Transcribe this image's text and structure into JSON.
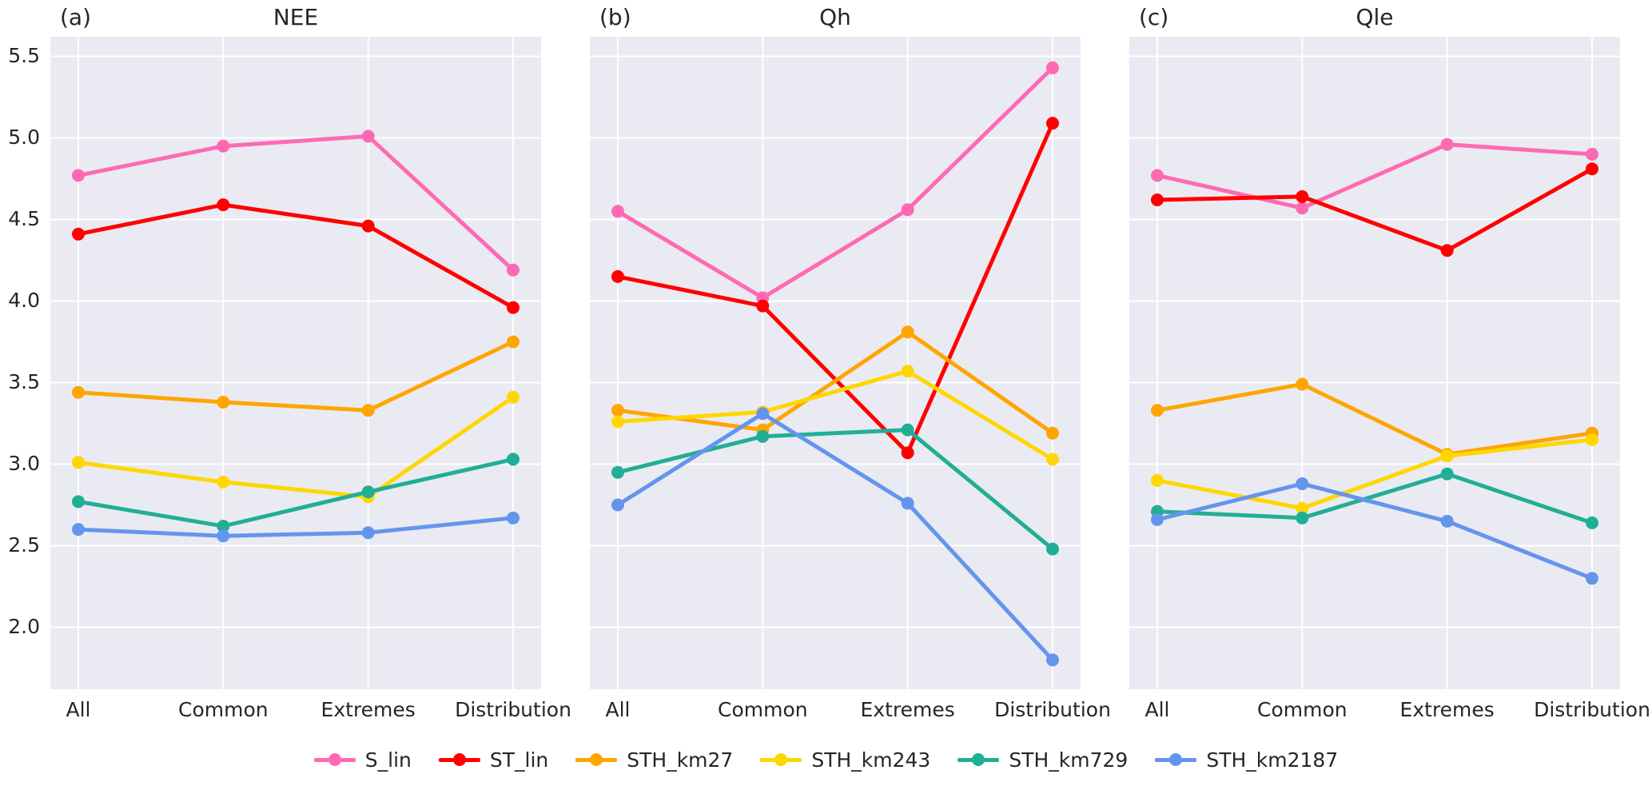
{
  "figure": {
    "background": "#ffffff",
    "plot_background": "#eaeaf2",
    "grid_color": "#ffffff",
    "text_color": "#262626"
  },
  "panels": [
    {
      "letter": "(a)",
      "title": "NEE"
    },
    {
      "letter": "(b)",
      "title": "Qh"
    },
    {
      "letter": "(c)",
      "title": "Qle"
    }
  ],
  "axes": {
    "y_tick_labels": [
      "5.5",
      "5.0",
      "4.5",
      "4.0",
      "3.5",
      "3.0",
      "2.5",
      "2.0"
    ],
    "x_tick_labels": [
      "All",
      "Common",
      "Extremes",
      "Distribution"
    ]
  },
  "legend": {
    "items": [
      {
        "label": "S_lin",
        "color": "#ff69b4"
      },
      {
        "label": "ST_lin",
        "color": "#ff0000"
      },
      {
        "label": "STH_km27",
        "color": "#ffa500"
      },
      {
        "label": "STH_km243",
        "color": "#ffd700"
      },
      {
        "label": "STH_km729",
        "color": "#21ae96"
      },
      {
        "label": "STH_km2187",
        "color": "#6495ed"
      }
    ]
  },
  "chart_data": [
    {
      "type": "line",
      "title": "NEE",
      "panel_label": "(a)",
      "categories": [
        "All",
        "Common",
        "Extremes",
        "Distribution"
      ],
      "ylim": [
        1.62,
        5.62
      ],
      "yticks": [
        5.5,
        5.0,
        4.5,
        4.0,
        3.5,
        3.0,
        2.5,
        2.0
      ],
      "grid": true,
      "legend_position": "below-figure",
      "series": [
        {
          "name": "S_lin",
          "color": "#ff69b4",
          "values": [
            4.77,
            4.95,
            5.01,
            4.19
          ]
        },
        {
          "name": "ST_lin",
          "color": "#ff0000",
          "values": [
            4.41,
            4.59,
            4.46,
            3.96
          ]
        },
        {
          "name": "STH_km27",
          "color": "#ffa500",
          "values": [
            3.44,
            3.38,
            3.33,
            3.75
          ]
        },
        {
          "name": "STH_km243",
          "color": "#ffd700",
          "values": [
            3.01,
            2.89,
            2.8,
            3.41
          ]
        },
        {
          "name": "STH_km729",
          "color": "#21ae96",
          "values": [
            2.77,
            2.62,
            2.83,
            3.03
          ]
        },
        {
          "name": "STH_km2187",
          "color": "#6495ed",
          "values": [
            2.6,
            2.56,
            2.58,
            2.67
          ]
        }
      ]
    },
    {
      "type": "line",
      "title": "Qh",
      "panel_label": "(b)",
      "categories": [
        "All",
        "Common",
        "Extremes",
        "Distribution"
      ],
      "ylim": [
        1.62,
        5.62
      ],
      "yticks": [
        5.5,
        5.0,
        4.5,
        4.0,
        3.5,
        3.0,
        2.5,
        2.0
      ],
      "grid": true,
      "legend_position": "below-figure",
      "series": [
        {
          "name": "S_lin",
          "color": "#ff69b4",
          "values": [
            4.55,
            4.02,
            4.56,
            5.43
          ]
        },
        {
          "name": "ST_lin",
          "color": "#ff0000",
          "values": [
            4.15,
            3.97,
            3.07,
            5.09
          ]
        },
        {
          "name": "STH_km27",
          "color": "#ffa500",
          "values": [
            3.33,
            3.21,
            3.81,
            3.19
          ]
        },
        {
          "name": "STH_km243",
          "color": "#ffd700",
          "values": [
            3.26,
            3.32,
            3.57,
            3.03
          ]
        },
        {
          "name": "STH_km729",
          "color": "#21ae96",
          "values": [
            2.95,
            3.17,
            3.21,
            2.48
          ]
        },
        {
          "name": "STH_km2187",
          "color": "#6495ed",
          "values": [
            2.75,
            3.31,
            2.76,
            1.8
          ]
        }
      ]
    },
    {
      "type": "line",
      "title": "Qle",
      "panel_label": "(c)",
      "categories": [
        "All",
        "Common",
        "Extremes",
        "Distribution"
      ],
      "ylim": [
        1.62,
        5.62
      ],
      "yticks": [
        5.5,
        5.0,
        4.5,
        4.0,
        3.5,
        3.0,
        2.5,
        2.0
      ],
      "grid": true,
      "legend_position": "below-figure",
      "series": [
        {
          "name": "S_lin",
          "color": "#ff69b4",
          "values": [
            4.77,
            4.57,
            4.96,
            4.9
          ]
        },
        {
          "name": "ST_lin",
          "color": "#ff0000",
          "values": [
            4.62,
            4.64,
            4.31,
            4.81
          ]
        },
        {
          "name": "STH_km27",
          "color": "#ffa500",
          "values": [
            3.33,
            3.49,
            3.06,
            3.19
          ]
        },
        {
          "name": "STH_km243",
          "color": "#ffd700",
          "values": [
            2.9,
            2.73,
            3.05,
            3.15
          ]
        },
        {
          "name": "STH_km729",
          "color": "#21ae96",
          "values": [
            2.71,
            2.67,
            2.94,
            2.64
          ]
        },
        {
          "name": "STH_km2187",
          "color": "#6495ed",
          "values": [
            2.66,
            2.88,
            2.65,
            2.3
          ]
        }
      ]
    }
  ]
}
